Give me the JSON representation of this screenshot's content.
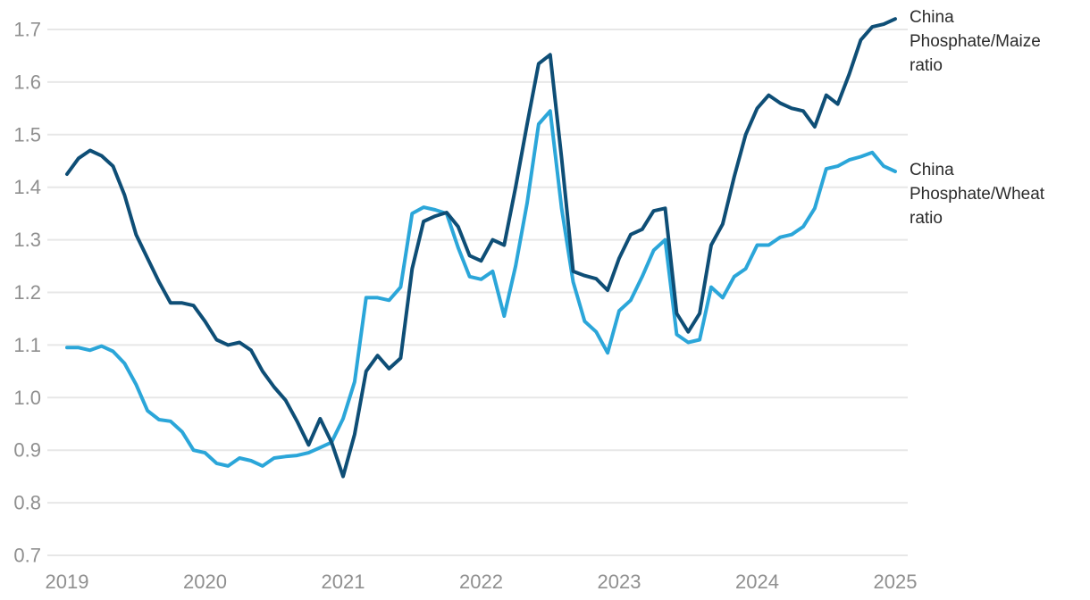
{
  "legend": {
    "maize_label": "China Phosphate/Maize ratio",
    "wheat_label": "China Phosphate/Wheat ratio"
  },
  "colors": {
    "maize_line": "#0e4e76",
    "wheat_line": "#2ba6d9",
    "gridline": "#e7e7e7",
    "axis_text": "#8f8f8f",
    "label_text": "#2b2b2b",
    "background": "#ffffff"
  },
  "chart_data": {
    "type": "line",
    "title": "",
    "xlabel": "",
    "ylabel": "",
    "frequency": "monthly",
    "ylim": [
      0.7,
      1.7
    ],
    "grid": "horizontal",
    "legend_position": "right-of-line-ends",
    "y_ticks": [
      0.7,
      0.8,
      0.9,
      1.0,
      1.1,
      1.2,
      1.3,
      1.4,
      1.5,
      1.6,
      1.7
    ],
    "x_tick_labels": [
      "2019",
      "2020",
      "2021",
      "2022",
      "2023",
      "2024",
      "2025"
    ],
    "x": [
      "2019-01",
      "2019-02",
      "2019-03",
      "2019-04",
      "2019-05",
      "2019-06",
      "2019-07",
      "2019-08",
      "2019-09",
      "2019-10",
      "2019-11",
      "2019-12",
      "2020-01",
      "2020-02",
      "2020-03",
      "2020-04",
      "2020-05",
      "2020-06",
      "2020-07",
      "2020-08",
      "2020-09",
      "2020-10",
      "2020-11",
      "2020-12",
      "2021-01",
      "2021-02",
      "2021-03",
      "2021-04",
      "2021-05",
      "2021-06",
      "2021-07",
      "2021-08",
      "2021-09",
      "2021-10",
      "2021-11",
      "2021-12",
      "2022-01",
      "2022-02",
      "2022-03",
      "2022-04",
      "2022-05",
      "2022-06",
      "2022-07",
      "2022-08",
      "2022-09",
      "2022-10",
      "2022-11",
      "2022-12",
      "2023-01",
      "2023-02",
      "2023-03",
      "2023-04",
      "2023-05",
      "2023-06",
      "2023-07",
      "2023-08",
      "2023-09",
      "2023-10",
      "2023-11",
      "2023-12",
      "2024-01",
      "2024-02",
      "2024-03",
      "2024-04",
      "2024-05",
      "2024-06",
      "2024-07",
      "2024-08",
      "2024-09",
      "2024-10",
      "2024-11",
      "2024-12",
      "2025-01"
    ],
    "series": [
      {
        "name": "China Phosphate/Maize ratio",
        "color": "#0e4e76",
        "values": [
          1.425,
          1.455,
          1.47,
          1.46,
          1.44,
          1.385,
          1.31,
          1.265,
          1.22,
          1.18,
          1.18,
          1.175,
          1.145,
          1.11,
          1.1,
          1.105,
          1.09,
          1.05,
          1.02,
          0.995,
          0.955,
          0.91,
          0.96,
          0.915,
          0.85,
          0.93,
          1.05,
          1.08,
          1.055,
          1.075,
          1.245,
          1.335,
          1.345,
          1.352,
          1.325,
          1.27,
          1.26,
          1.3,
          1.29,
          1.4,
          1.52,
          1.635,
          1.652,
          1.455,
          1.24,
          1.232,
          1.226,
          1.204,
          1.265,
          1.31,
          1.32,
          1.355,
          1.36,
          1.16,
          1.125,
          1.16,
          1.29,
          1.33,
          1.42,
          1.5,
          1.55,
          1.575,
          1.56,
          1.55,
          1.545,
          1.515,
          1.575,
          1.558,
          1.615,
          1.68,
          1.705,
          1.71,
          1.72
        ]
      },
      {
        "name": "China Phosphate/Wheat ratio",
        "color": "#2ba6d9",
        "values": [
          1.095,
          1.095,
          1.09,
          1.098,
          1.088,
          1.065,
          1.025,
          0.975,
          0.958,
          0.955,
          0.935,
          0.9,
          0.895,
          0.875,
          0.87,
          0.885,
          0.88,
          0.87,
          0.885,
          0.888,
          0.89,
          0.895,
          0.905,
          0.915,
          0.96,
          1.03,
          1.19,
          1.19,
          1.185,
          1.21,
          1.35,
          1.362,
          1.357,
          1.35,
          1.285,
          1.23,
          1.225,
          1.24,
          1.155,
          1.25,
          1.37,
          1.52,
          1.545,
          1.36,
          1.22,
          1.145,
          1.125,
          1.085,
          1.165,
          1.185,
          1.23,
          1.28,
          1.3,
          1.12,
          1.105,
          1.11,
          1.21,
          1.19,
          1.23,
          1.245,
          1.29,
          1.29,
          1.305,
          1.31,
          1.325,
          1.36,
          1.435,
          1.44,
          1.452,
          1.458,
          1.466,
          1.44,
          1.43
        ]
      }
    ]
  }
}
